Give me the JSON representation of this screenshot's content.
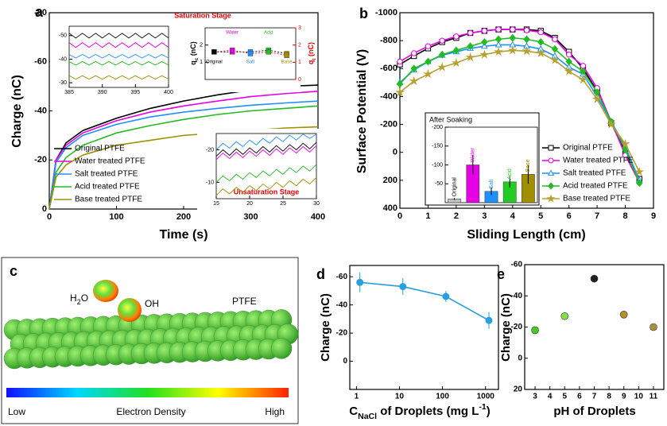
{
  "chart_data": [
    {
      "type": "line",
      "panel_label": "a",
      "x_label": "Time (s)",
      "y_label": "Charge (nC)",
      "xlim": [
        0,
        400
      ],
      "xticks": [
        0,
        100,
        200,
        300,
        400
      ],
      "ylim": [
        0,
        -80
      ],
      "yticks": [
        0,
        -20,
        -40,
        -60,
        -80
      ],
      "legend": "lower left",
      "x": [
        0,
        10,
        25,
        50,
        100,
        150,
        200,
        250,
        300,
        350,
        400
      ],
      "series": [
        {
          "name": "Original PTFE",
          "color": "#000000",
          "values": [
            0,
            -20,
            -27,
            -32,
            -37,
            -41,
            -44,
            -46.5,
            -48.5,
            -50,
            -50.5
          ]
        },
        {
          "name": "Water treated PTFE",
          "color": "#e600e6",
          "values": [
            0,
            -20,
            -26,
            -31,
            -36,
            -39.5,
            -42,
            -44,
            -45.8,
            -47,
            -48
          ]
        },
        {
          "name": "Salt treated PTFE",
          "color": "#1e90ff",
          "values": [
            0,
            -19,
            -25,
            -30,
            -34.5,
            -37.5,
            -39.5,
            -41,
            -42.3,
            -43.2,
            -44
          ]
        },
        {
          "name": "Acid treated PTFE",
          "color": "#22bb22",
          "values": [
            0,
            -15,
            -21,
            -26,
            -31,
            -34,
            -36.5,
            -38.5,
            -40,
            -41,
            -42
          ]
        },
        {
          "name": "Base treated PTFE",
          "color": "#a09000",
          "values": [
            0,
            -13,
            -18,
            -22,
            -26,
            -28,
            -30,
            -31,
            -32,
            -33,
            -33.5
          ]
        }
      ]
    },
    {
      "type": "line",
      "title": "Saturation Stage",
      "xlim": [
        385,
        400
      ],
      "xticks": [
        385,
        390,
        395,
        400
      ],
      "ylim": [
        -28,
        -54
      ],
      "yticks": [
        -50,
        -40,
        -30
      ],
      "x": [
        385,
        386,
        387,
        388,
        389,
        390,
        391,
        392,
        393,
        394,
        395,
        396,
        397,
        398,
        399,
        400
      ],
      "series": [
        {
          "color": "#000000",
          "values": [
            -51,
            -49,
            -51,
            -49,
            -51,
            -49,
            -51,
            -49,
            -51,
            -49,
            -51,
            -49,
            -51,
            -49,
            -51,
            -49
          ]
        },
        {
          "color": "#e600e6",
          "values": [
            -47,
            -45,
            -47,
            -45,
            -47,
            -45,
            -47,
            -45,
            -47,
            -45,
            -47,
            -45,
            -47,
            -45,
            -47,
            -45
          ]
        },
        {
          "color": "#1e90ff",
          "values": [
            -42,
            -40.5,
            -42,
            -40.5,
            -42,
            -40.5,
            -42,
            -40.5,
            -42,
            -40.5,
            -42,
            -40.5,
            -42,
            -40.5,
            -42,
            -40.5
          ]
        },
        {
          "color": "#22bb22",
          "values": [
            -39,
            -37.5,
            -39,
            -37.5,
            -39,
            -37.5,
            -39,
            -37.5,
            -39,
            -37.5,
            -39,
            -37.5,
            -39,
            -37.5,
            -39,
            -37.5
          ]
        },
        {
          "color": "#a09000",
          "values": [
            -33,
            -31.5,
            -33,
            -31.5,
            -33,
            -31.5,
            -33,
            -31.5,
            -33,
            -31.5,
            -33,
            -31.5,
            -33,
            -31.5,
            -33,
            -31.5
          ]
        }
      ]
    },
    {
      "type": "line",
      "categories": [
        "Original",
        "Water",
        "Salt",
        "Acid",
        "Base"
      ],
      "category_colors": [
        "#000000",
        "#e600e6",
        "#1e90ff",
        "#22bb22",
        "#a09000"
      ],
      "y_label": [
        "q",
        "c",
        " (nC)"
      ],
      "y2_label": [
        "q",
        "t",
        " (nC)"
      ],
      "ylim": [
        0,
        3
      ],
      "yticks": [
        1,
        2
      ],
      "y2lim": [
        0,
        3
      ],
      "y2ticks": [
        0,
        1,
        2,
        3
      ],
      "series": [
        {
          "color": "#000000",
          "values": [
            1.6,
            1.6,
            1.6,
            1.7,
            1.5
          ]
        },
        {
          "color": "#e00000",
          "axis": "y2",
          "values": [
            1.6,
            1.7,
            1.5,
            1.6,
            1.4
          ]
        }
      ]
    },
    {
      "type": "line",
      "title": "Unsaturation Stage",
      "xlim": [
        15,
        30
      ],
      "xticks": [
        15,
        20,
        25,
        30
      ],
      "ylim": [
        -5,
        -25
      ],
      "yticks": [
        -10,
        -20
      ],
      "x": [
        15,
        16,
        17,
        18,
        19,
        20,
        21,
        22,
        23,
        24,
        25,
        26,
        27,
        28,
        29,
        30
      ],
      "series": [
        {
          "color": "#000000",
          "values": [
            -18,
            -20,
            -18.3,
            -20.3,
            -18.6,
            -20.6,
            -19,
            -21,
            -19.3,
            -21.3,
            -19.6,
            -21.6,
            -20,
            -22,
            -20.3,
            -22.3
          ]
        },
        {
          "color": "#e600e6",
          "values": [
            -17,
            -19,
            -17.3,
            -19.3,
            -17.6,
            -19.6,
            -18,
            -20,
            -18.3,
            -20.3,
            -18.6,
            -20.6,
            -19,
            -21,
            -19.3,
            -21.3
          ]
        },
        {
          "color": "#1e90ff",
          "values": [
            -20,
            -22,
            -20.5,
            -22.5,
            -21,
            -23,
            -21.5,
            -23.5,
            -22,
            -24,
            -22.5,
            -24.5,
            -23,
            -24.8,
            -23.5,
            -24.8
          ]
        },
        {
          "color": "#22bb22",
          "values": [
            -10,
            -12,
            -10.5,
            -12.5,
            -11,
            -13,
            -11.5,
            -13.5,
            -12,
            -14,
            -12.5,
            -14.5,
            -13,
            -15,
            -13.5,
            -15.5
          ]
        },
        {
          "color": "#a09000",
          "values": [
            -6,
            -8,
            -6.5,
            -8.5,
            -7,
            -9,
            -7.5,
            -9.5,
            -8,
            -10,
            -8.5,
            -10.5,
            -9,
            -11,
            -9.5,
            -11.5
          ]
        }
      ]
    },
    {
      "type": "line",
      "panel_label": "b",
      "x_label": "Sliding Length (cm)",
      "y_label": "Surface Potential (V)",
      "xlim": [
        0,
        9
      ],
      "xticks": [
        0,
        1,
        2,
        3,
        4,
        5,
        6,
        7,
        8,
        9
      ],
      "ylim": [
        400,
        -1000
      ],
      "yticks": [
        -1000,
        -800,
        -600,
        -400,
        -200,
        0,
        200,
        400
      ],
      "legend": "lower right",
      "x": [
        0,
        0.5,
        1,
        1.5,
        2,
        2.5,
        3,
        3.5,
        4,
        4.5,
        5,
        5.5,
        6,
        6.5,
        7,
        7.5,
        8,
        8.5
      ],
      "series": [
        {
          "name": "Original PTFE",
          "color": "#000000",
          "marker": "square",
          "marker_filled": false,
          "values": [
            -630,
            -690,
            -745,
            -790,
            -820,
            -855,
            -870,
            -880,
            -880,
            -880,
            -870,
            -820,
            -720,
            -600,
            -440,
            -210,
            0,
            190
          ]
        },
        {
          "name": "Water treated PTFE",
          "color": "#e600e6",
          "marker": "circle",
          "marker_filled": false,
          "values": [
            -650,
            -710,
            -760,
            -800,
            -830,
            -855,
            -870,
            -880,
            -880,
            -875,
            -860,
            -810,
            -700,
            -620,
            -460,
            -220,
            20,
            215
          ]
        },
        {
          "name": "Salt treated PTFE",
          "color": "#1e90ff",
          "marker": "triangle",
          "marker_filled": false,
          "values": [
            -500,
            -590,
            -650,
            -695,
            -720,
            -745,
            -760,
            -770,
            -770,
            -760,
            -740,
            -690,
            -610,
            -560,
            -400,
            -220,
            -40,
            200
          ]
        },
        {
          "name": "Acid treated PTFE",
          "color": "#22bb22",
          "marker": "diamond",
          "marker_filled": true,
          "values": [
            -490,
            -600,
            -650,
            -700,
            -730,
            -760,
            -790,
            -810,
            -820,
            -810,
            -790,
            -740,
            -650,
            -580,
            -430,
            -220,
            -20,
            220
          ]
        },
        {
          "name": "Base treated PTFE",
          "color": "#b8a030",
          "marker": "star",
          "marker_filled": true,
          "values": [
            -430,
            -510,
            -560,
            -610,
            -640,
            -680,
            -700,
            -720,
            -730,
            -725,
            -710,
            -660,
            -580,
            -520,
            -380,
            -200,
            -60,
            140
          ]
        }
      ]
    },
    {
      "type": "bar",
      "title": "After Soaking",
      "categories": [
        "Original",
        "Water",
        "Salt",
        "Acid",
        "Base"
      ],
      "values": [
        -10,
        -100,
        -30,
        -55,
        -75
      ],
      "errors": [
        3,
        25,
        10,
        15,
        25
      ],
      "colors": [
        "#c0c0c0",
        "#e600e6",
        "#1e90ff",
        "#22cc22",
        "#a09000"
      ],
      "ylim": [
        0,
        -200
      ],
      "yticks": [
        -200,
        -150,
        -100,
        -50
      ]
    },
    {
      "type": "line",
      "panel_label": "d",
      "x_label": [
        "C",
        "NaCl",
        " of Droplets (mg L",
        "-1",
        ")"
      ],
      "y_label": "Charge (nC)",
      "xscale": "log",
      "xlim": [
        0.7,
        2000
      ],
      "xticks": [
        1,
        10,
        100,
        1000
      ],
      "ylim": [
        20,
        -68
      ],
      "yticks": [
        0,
        -20,
        -40,
        -60
      ],
      "x": [
        1.2,
        12,
        120,
        1200
      ],
      "series": [
        {
          "color": "#2a9fe0",
          "marker": "circle",
          "marker_filled": true,
          "values": [
            -56,
            -53,
            -46,
            -29
          ],
          "errors": [
            7,
            6,
            4,
            6
          ]
        }
      ]
    },
    {
      "type": "scatter",
      "panel_label": "e",
      "x_label": "pH of Droplets",
      "y_label": "Charge (nC)",
      "xlim": [
        2.3,
        11.7
      ],
      "xticks": [
        3,
        4,
        5,
        6,
        7,
        8,
        9,
        10,
        11
      ],
      "ylim": [
        20,
        -60
      ],
      "yticks": [
        -60,
        -40,
        -20,
        0,
        20
      ],
      "x": [
        3,
        5,
        7,
        9,
        11
      ],
      "series": [
        {
          "colors": [
            "#44cc22",
            "#88dd44",
            "#222222",
            "#b8902a",
            "#a89040"
          ],
          "values": [
            -18,
            -27,
            -51,
            -28,
            -20
          ]
        }
      ]
    }
  ],
  "panel_c": {
    "label": "c",
    "water": [
      "H",
      "2",
      "O"
    ],
    "hydroxyl": "OH",
    "polymer": "PTFE",
    "scale_low": "Low",
    "scale_title": "Electron Density",
    "scale_high": "High"
  }
}
